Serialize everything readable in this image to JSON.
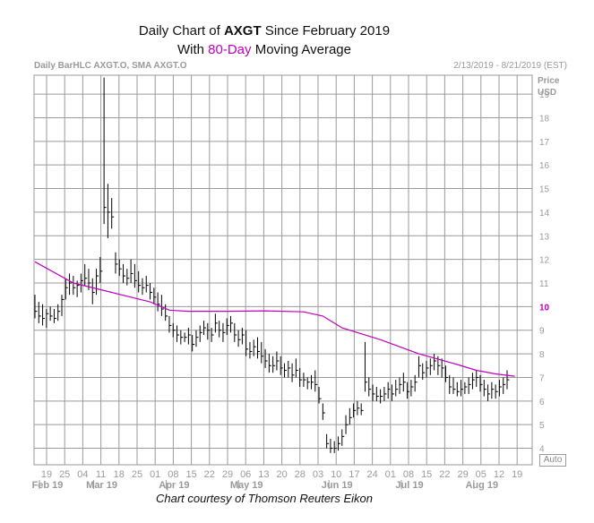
{
  "title": {
    "line1_prefix": "Daily Chart of ",
    "line1_ticker": "AXGT",
    "line1_suffix": " Since February 2019",
    "line2_prefix": "With ",
    "line2_highlight": "80-Day",
    "line2_suffix": " Moving Average"
  },
  "header": {
    "left": "Daily BarHLC AXGT.O, SMA AXGT.O",
    "right": "2/13/2019 - 8/21/2019 (EST)"
  },
  "caption": "Chart courtesy of Thomson Reuters Eikon",
  "auto_button": "Auto",
  "chart_data": {
    "type": "bar",
    "subtype": "daily-ohlc-bars-with-sma",
    "y_axis_title": [
      "Price",
      "USD"
    ],
    "ylim": [
      3.3,
      19.8
    ],
    "y_ticks": [
      4,
      5,
      6,
      7,
      8,
      9,
      10,
      11,
      12,
      13,
      14,
      15,
      16,
      17,
      18,
      19
    ],
    "y_highlight_tick": 10,
    "x_week_labels": [
      "19",
      "25",
      "04",
      "11",
      "18",
      "25",
      "01",
      "08",
      "15",
      "22",
      "29",
      "06",
      "13",
      "20",
      "28",
      "03",
      "10",
      "17",
      "24",
      "01",
      "08",
      "15",
      "22",
      "29",
      "05",
      "12",
      "19"
    ],
    "x_month_labels": [
      {
        "label": "Feb 19",
        "week_index": 0
      },
      {
        "label": "Mar 19",
        "week_index": 3
      },
      {
        "label": "Apr 19",
        "week_index": 7
      },
      {
        "label": "May 19",
        "week_index": 11
      },
      {
        "label": "Jun 19",
        "week_index": 16
      },
      {
        "label": "Jul 19",
        "week_index": 20
      },
      {
        "label": "Aug 19",
        "week_index": 24
      }
    ],
    "grid": true,
    "colors": {
      "bars": "#000000",
      "sma": "#c000c0",
      "grid": "#9a9a9a",
      "highlight_tick": "#c000c0"
    },
    "bars": [
      [
        10.5,
        9.5,
        9.8
      ],
      [
        10.2,
        9.3,
        9.6
      ],
      [
        10.1,
        9.2,
        9.5
      ],
      [
        9.9,
        9.1,
        9.7
      ],
      [
        10.0,
        9.4,
        9.6
      ],
      [
        9.9,
        9.3,
        9.5
      ],
      [
        10.1,
        9.4,
        9.8
      ],
      [
        10.5,
        9.6,
        10.3
      ],
      [
        11.2,
        10.3,
        10.8
      ],
      [
        11.4,
        10.5,
        11.0
      ],
      [
        11.3,
        10.5,
        10.8
      ],
      [
        11.1,
        10.4,
        10.9
      ],
      [
        11.4,
        10.6,
        11.1
      ],
      [
        11.8,
        10.9,
        11.2
      ],
      [
        11.6,
        10.7,
        11.0
      ],
      [
        11.2,
        10.1,
        10.6
      ],
      [
        11.6,
        10.5,
        11.3
      ],
      [
        12.1,
        11.0,
        11.5
      ],
      [
        19.7,
        13.5,
        14.2
      ],
      [
        15.2,
        12.9,
        14.0
      ],
      [
        14.6,
        13.3,
        13.8
      ],
      [
        12.3,
        11.4,
        11.8
      ],
      [
        12.0,
        11.3,
        11.6
      ],
      [
        11.8,
        11.0,
        11.3
      ],
      [
        11.6,
        10.9,
        11.2
      ],
      [
        12.0,
        11.0,
        11.4
      ],
      [
        11.8,
        10.8,
        11.1
      ],
      [
        11.5,
        10.6,
        10.9
      ],
      [
        11.2,
        10.5,
        10.8
      ],
      [
        11.3,
        10.6,
        10.9
      ],
      [
        11.0,
        10.3,
        10.6
      ],
      [
        10.8,
        10.1,
        10.4
      ],
      [
        10.6,
        9.8,
        10.1
      ],
      [
        10.5,
        9.6,
        9.9
      ],
      [
        10.1,
        9.4,
        9.6
      ],
      [
        9.6,
        8.9,
        9.2
      ],
      [
        9.3,
        8.7,
        9.0
      ],
      [
        9.2,
        8.5,
        8.8
      ],
      [
        9.0,
        8.4,
        8.7
      ],
      [
        8.9,
        8.5,
        8.7
      ],
      [
        9.1,
        8.4,
        8.8
      ],
      [
        8.8,
        8.1,
        8.4
      ],
      [
        9.0,
        8.3,
        8.7
      ],
      [
        9.2,
        8.5,
        8.9
      ],
      [
        9.4,
        8.8,
        9.1
      ],
      [
        9.3,
        8.6,
        9.0
      ],
      [
        9.1,
        8.5,
        8.8
      ],
      [
        9.7,
        8.9,
        9.3
      ],
      [
        9.4,
        8.7,
        9.0
      ],
      [
        9.3,
        8.5,
        8.9
      ],
      [
        9.5,
        8.8,
        9.2
      ],
      [
        9.6,
        8.9,
        9.3
      ],
      [
        9.3,
        8.5,
        8.8
      ],
      [
        9.0,
        8.3,
        8.6
      ],
      [
        9.1,
        8.4,
        8.8
      ],
      [
        9.0,
        7.9,
        8.2
      ],
      [
        8.5,
        7.8,
        8.1
      ],
      [
        8.6,
        7.9,
        8.3
      ],
      [
        8.7,
        7.8,
        8.1
      ],
      [
        8.5,
        7.6,
        7.9
      ],
      [
        8.2,
        7.4,
        7.7
      ],
      [
        8.0,
        7.2,
        7.5
      ],
      [
        7.9,
        7.2,
        7.5
      ],
      [
        8.1,
        7.3,
        7.7
      ],
      [
        7.9,
        7.1,
        7.4
      ],
      [
        7.6,
        7.0,
        7.3
      ],
      [
        7.7,
        7.0,
        7.4
      ],
      [
        7.6,
        6.8,
        7.1
      ],
      [
        7.8,
        7.0,
        7.3
      ],
      [
        7.4,
        6.6,
        6.9
      ],
      [
        7.2,
        6.6,
        6.9
      ],
      [
        7.0,
        6.5,
        6.8
      ],
      [
        7.1,
        6.5,
        6.8
      ],
      [
        7.3,
        6.4,
        6.7
      ],
      [
        6.6,
        5.9,
        6.1
      ],
      [
        5.9,
        5.2,
        5.5
      ],
      [
        4.6,
        4.0,
        4.2
      ],
      [
        4.4,
        3.8,
        4.0
      ],
      [
        4.3,
        3.8,
        4.0
      ],
      [
        4.5,
        3.9,
        4.2
      ],
      [
        4.8,
        4.1,
        4.5
      ],
      [
        5.4,
        4.6,
        5.0
      ],
      [
        5.7,
        5.0,
        5.3
      ],
      [
        5.9,
        5.3,
        5.6
      ],
      [
        6.0,
        5.4,
        5.7
      ],
      [
        5.9,
        5.4,
        5.6
      ],
      [
        8.5,
        6.4,
        6.8
      ],
      [
        7.0,
        6.2,
        6.5
      ],
      [
        6.7,
        6.0,
        6.3
      ],
      [
        6.6,
        6.0,
        6.2
      ],
      [
        6.5,
        5.9,
        6.2
      ],
      [
        6.6,
        6.0,
        6.3
      ],
      [
        6.8,
        6.1,
        6.5
      ],
      [
        6.7,
        6.0,
        6.3
      ],
      [
        6.9,
        6.2,
        6.5
      ],
      [
        7.0,
        6.3,
        6.7
      ],
      [
        7.2,
        6.4,
        6.8
      ],
      [
        6.8,
        6.1,
        6.4
      ],
      [
        6.9,
        6.2,
        6.6
      ],
      [
        7.1,
        6.4,
        6.8
      ],
      [
        7.9,
        7.0,
        7.5
      ],
      [
        7.6,
        6.9,
        7.2
      ],
      [
        7.7,
        7.0,
        7.4
      ],
      [
        7.8,
        7.1,
        7.5
      ],
      [
        8.0,
        7.3,
        7.7
      ],
      [
        7.9,
        7.1,
        7.5
      ],
      [
        7.8,
        7.0,
        7.4
      ],
      [
        7.5,
        6.8,
        7.0
      ],
      [
        7.1,
        6.3,
        6.6
      ],
      [
        7.0,
        6.3,
        6.5
      ],
      [
        6.8,
        6.2,
        6.4
      ],
      [
        6.9,
        6.2,
        6.5
      ],
      [
        6.8,
        6.3,
        6.6
      ],
      [
        7.0,
        6.3,
        6.7
      ],
      [
        7.2,
        6.5,
        6.9
      ],
      [
        7.3,
        6.6,
        7.0
      ],
      [
        7.1,
        6.4,
        6.7
      ],
      [
        6.9,
        6.2,
        6.5
      ],
      [
        6.7,
        6.0,
        6.3
      ],
      [
        6.8,
        6.1,
        6.5
      ],
      [
        6.7,
        6.1,
        6.4
      ],
      [
        6.9,
        6.2,
        6.6
      ],
      [
        7.0,
        6.3,
        6.7
      ],
      [
        7.3,
        6.5,
        6.9
      ]
    ],
    "sma_points": [
      [
        0,
        11.9
      ],
      [
        10,
        11.0
      ],
      [
        20,
        10.6
      ],
      [
        30,
        10.2
      ],
      [
        35,
        9.85
      ],
      [
        40,
        9.8
      ],
      [
        50,
        9.8
      ],
      [
        60,
        9.82
      ],
      [
        70,
        9.78
      ],
      [
        75,
        9.6
      ],
      [
        80,
        9.1
      ],
      [
        90,
        8.6
      ],
      [
        100,
        8.0
      ],
      [
        110,
        7.55
      ],
      [
        115,
        7.3
      ],
      [
        120,
        7.15
      ],
      [
        125,
        7.05
      ]
    ]
  }
}
